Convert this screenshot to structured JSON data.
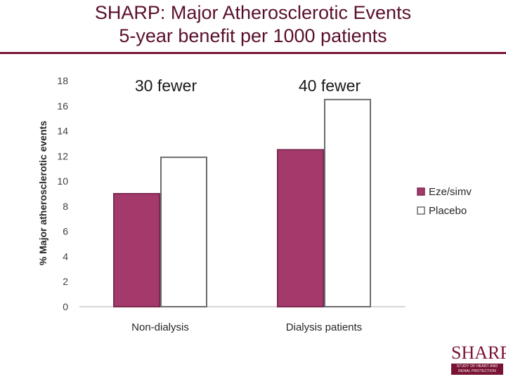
{
  "slide": {
    "title_line1": "SHARP: Major Atherosclerotic Events",
    "title_line2": "5-year benefit per 1000 patients"
  },
  "logo": {
    "word": "SHARP",
    "band_line1": "STUDY OF HEART AND",
    "band_line2": "RENAL PROTECTION"
  },
  "colors": {
    "title": "#5a0f2c",
    "eze": "#a33a6b",
    "placebo": "#ffffff",
    "accent": "#7a1434"
  },
  "chart_data": {
    "type": "bar",
    "title": "",
    "xlabel": "",
    "ylabel": "% Major atherosclerotic events",
    "ylim": [
      0,
      18
    ],
    "yticks": [
      "0",
      "2",
      "4",
      "6",
      "8",
      "10",
      "12",
      "14",
      "16",
      "18"
    ],
    "categories": [
      "Non-dialysis",
      "Dialysis patients"
    ],
    "series": [
      {
        "name": "Eze/simv",
        "values": [
          9.0,
          12.5
        ]
      },
      {
        "name": "Placebo",
        "values": [
          11.9,
          16.5
        ]
      }
    ],
    "annotations": [
      "30 fewer",
      "40 fewer"
    ],
    "legend": "right",
    "grid": false
  }
}
